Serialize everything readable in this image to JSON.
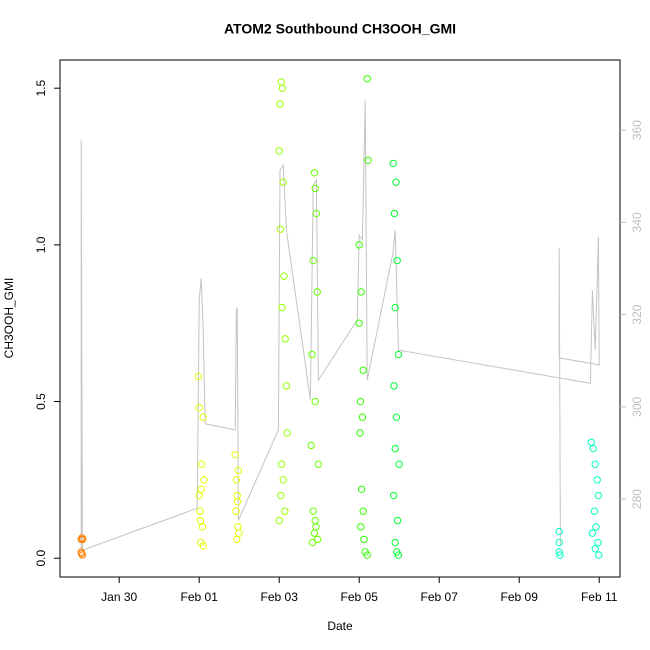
{
  "chart_data": {
    "type": "scatter",
    "title": "ATOM2 Southbound CH3OOH_GMI",
    "x_label": "Date",
    "y_label": "CH3OOH_GMI",
    "xlim": [
      28.52,
      42.52
    ],
    "ylim": [
      -0.06,
      1.59
    ],
    "y2lim": [
      263.1,
      375.2
    ],
    "xticks": [
      {
        "value": 30,
        "label": "Jan 30"
      },
      {
        "value": 32,
        "label": "Feb 01"
      },
      {
        "value": 34,
        "label": "Feb 03"
      },
      {
        "value": 36,
        "label": "Feb 05"
      },
      {
        "value": 38,
        "label": "Feb 07"
      },
      {
        "value": 40,
        "label": "Feb 09"
      },
      {
        "value": 42,
        "label": "Feb 11"
      }
    ],
    "yticks": [
      {
        "value": 0,
        "label": "0.0"
      },
      0.5,
      {
        "value": 1,
        "label": "1.0"
      },
      1.5
    ],
    "y2ticks": [
      280,
      300,
      320,
      340,
      360
    ],
    "y2_color": "#bdbdbd",
    "series": [
      {
        "type": "line",
        "axis": "y2",
        "color": "#c4c4c4",
        "x": [
          29.05,
          29.05,
          29.08,
          31.95,
          32.0,
          32.05,
          32.1,
          32.15,
          32.9,
          32.93,
          32.95,
          32.98,
          33.98,
          34.02,
          34.1,
          34.18,
          34.78,
          34.85,
          34.93,
          34.98,
          35.95,
          36.0,
          36.08,
          36.15,
          36.2,
          36.85,
          36.9,
          36.98,
          41.78,
          41.83,
          41.9,
          41.98,
          42.0,
          41.0,
          41.0,
          41.03
        ],
        "values": [
          269.4,
          357.8,
          268.9,
          278.0,
          323.1,
          327.9,
          316.6,
          296.3,
          295.0,
          321.0,
          321.4,
          275.4,
          295.0,
          351.3,
          352.4,
          338.3,
          301.5,
          348.1,
          349.2,
          305.8,
          318.8,
          337.2,
          336.2,
          366.5,
          305.8,
          333.6,
          338.3,
          312.3,
          305.1,
          325.3,
          312.3,
          336.8,
          309.1,
          310.6,
          334.4,
          270.0
        ]
      },
      {
        "color": "#ff7f00",
        "x": [
          29.05,
          29.07,
          29.05,
          29.08,
          29.06,
          29.09
        ],
        "values": [
          0.06,
          0.065,
          0.02,
          0.01,
          0.015,
          0.06
        ]
      },
      {
        "color": "#e5ff00",
        "x": [
          31.98,
          32.0,
          32.1,
          32.12,
          32.05,
          32.0,
          32.02,
          32.08,
          32.04,
          32.1,
          32.06,
          32.03,
          32.9,
          32.93,
          32.95,
          32.92,
          32.97,
          32.99,
          32.94,
          32.96,
          32.98
        ],
        "values": [
          0.58,
          0.48,
          0.45,
          0.25,
          0.22,
          0.2,
          0.15,
          0.1,
          0.05,
          0.04,
          0.3,
          0.12,
          0.33,
          0.25,
          0.2,
          0.15,
          0.1,
          0.08,
          0.06,
          0.18,
          0.28
        ]
      },
      {
        "color": "#99ff00",
        "x": [
          34.05,
          34.08,
          34.02,
          34.0,
          34.1,
          34.03,
          34.12,
          34.07,
          34.15,
          34.18,
          34.2,
          34.06,
          34.1,
          34.04,
          34.14,
          34.0
        ],
        "values": [
          1.52,
          1.5,
          1.45,
          1.3,
          1.2,
          1.05,
          0.9,
          0.8,
          0.7,
          0.55,
          0.4,
          0.3,
          0.25,
          0.2,
          0.15,
          0.12
        ]
      },
      {
        "color": "#66ff00",
        "x": [
          34.88,
          34.9,
          34.93,
          34.85,
          34.95,
          34.82,
          34.9,
          34.8,
          34.98,
          34.85,
          34.92,
          34.88,
          34.83,
          34.96,
          34.9
        ],
        "values": [
          1.23,
          1.18,
          1.1,
          0.95,
          0.85,
          0.65,
          0.5,
          0.36,
          0.3,
          0.15,
          0.1,
          0.08,
          0.05,
          0.06,
          0.12
        ]
      },
      {
        "color": "#33ff00",
        "x": [
          36.2,
          36.22,
          36.0,
          36.05,
          36.0,
          36.1,
          36.03,
          36.08,
          36.02,
          36.06,
          36.1,
          36.04,
          36.12,
          36.15,
          36.2
        ],
        "values": [
          1.53,
          1.27,
          1.0,
          0.85,
          0.75,
          0.6,
          0.5,
          0.45,
          0.4,
          0.22,
          0.15,
          0.1,
          0.06,
          0.02,
          0.01
        ]
      },
      {
        "color": "#00ff33",
        "x": [
          36.85,
          36.92,
          36.88,
          36.95,
          36.9,
          36.98,
          36.87,
          36.93,
          36.9,
          37.0,
          36.86,
          36.96,
          36.9,
          36.94,
          36.98
        ],
        "values": [
          1.26,
          1.2,
          1.1,
          0.95,
          0.8,
          0.65,
          0.55,
          0.45,
          0.35,
          0.3,
          0.2,
          0.12,
          0.05,
          0.02,
          0.01
        ]
      },
      {
        "color": "#00ffc0",
        "x": [
          41.0,
          41.0,
          41.0,
          41.02,
          41.8,
          41.85,
          41.9,
          41.95,
          41.98,
          41.88,
          41.92,
          41.83,
          41.97,
          41.9,
          41.99
        ],
        "values": [
          0.085,
          0.05,
          0.02,
          0.01,
          0.37,
          0.35,
          0.3,
          0.25,
          0.2,
          0.15,
          0.1,
          0.08,
          0.05,
          0.03,
          0.01
        ]
      }
    ]
  }
}
